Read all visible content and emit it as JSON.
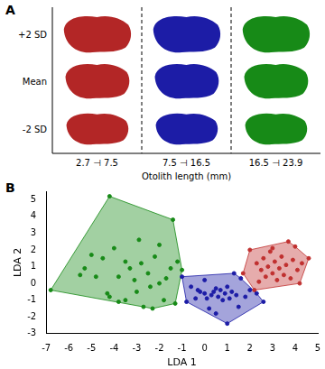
{
  "panel_a": {
    "label": "A",
    "rows": [
      "+2 SD",
      "Mean",
      "-2 SD"
    ],
    "columns": [
      {
        "label": "2.7 ⊣ 7.5",
        "color": "#b32626"
      },
      {
        "label": "7.5 ⊣ 16.5",
        "color": "#1c1ca6"
      },
      {
        "label": "16.5 ⊣ 23.9",
        "color": "#178a17"
      }
    ],
    "x_title": "Otolith length (mm)"
  },
  "panel_b_label": "B",
  "chart_data": {
    "type": "scatter",
    "x_label": "LDA 1",
    "y_label": "LDA 2",
    "xlim": [
      -7,
      5
    ],
    "ylim": [
      -3,
      5.5
    ],
    "xticks": [
      -7,
      -6,
      -5,
      -4,
      -3,
      -2,
      -1,
      0,
      1,
      2,
      3,
      4,
      5
    ],
    "yticks": [
      -3,
      -2,
      -1,
      0,
      1,
      2,
      3,
      4,
      5
    ],
    "grid": false,
    "series": [
      {
        "color": "#178a17",
        "points": [
          [
            -6.8,
            -0.4
          ],
          [
            -4.2,
            5.2
          ],
          [
            -5.5,
            0.5
          ],
          [
            -5.3,
            0.9
          ],
          [
            -4.8,
            0.4
          ],
          [
            -4.5,
            1.5
          ],
          [
            -4.3,
            -0.6
          ],
          [
            -4.0,
            2.1
          ],
          [
            -4.2,
            -0.8
          ],
          [
            -3.8,
            0.4
          ],
          [
            -3.5,
            1.3
          ],
          [
            -3.5,
            -1.0
          ],
          [
            -3.3,
            0.9
          ],
          [
            -3.1,
            0.2
          ],
          [
            -3.0,
            -0.5
          ],
          [
            -2.9,
            2.6
          ],
          [
            -2.8,
            1.2
          ],
          [
            -2.7,
            -1.4
          ],
          [
            -2.5,
            0.6
          ],
          [
            -2.4,
            -0.2
          ],
          [
            -2.2,
            1.6
          ],
          [
            -2.0,
            2.3
          ],
          [
            -2.0,
            0.0
          ],
          [
            -1.8,
            -1.0
          ],
          [
            -1.5,
            0.9
          ],
          [
            -1.4,
            3.8
          ],
          [
            -1.3,
            -1.2
          ],
          [
            -1.2,
            1.3
          ],
          [
            -1.0,
            0.8
          ],
          [
            -2.3,
            -1.5
          ],
          [
            -3.8,
            -1.1
          ],
          [
            -5.0,
            1.7
          ],
          [
            -1.7,
            0.3
          ]
        ]
      },
      {
        "color": "#1c1ca6",
        "points": [
          [
            -1.0,
            0.4
          ],
          [
            -0.8,
            -1.1
          ],
          [
            -0.6,
            -0.2
          ],
          [
            -0.3,
            -0.4
          ],
          [
            -0.2,
            -0.5
          ],
          [
            0.0,
            -0.6
          ],
          [
            0.1,
            -0.9
          ],
          [
            0.2,
            -1.5
          ],
          [
            0.3,
            -0.7
          ],
          [
            0.4,
            -0.5
          ],
          [
            0.5,
            -0.3
          ],
          [
            0.6,
            -0.8
          ],
          [
            0.7,
            -0.4
          ],
          [
            0.8,
            -1.0
          ],
          [
            0.9,
            -0.6
          ],
          [
            1.0,
            -2.4
          ],
          [
            1.0,
            -0.2
          ],
          [
            1.1,
            -0.9
          ],
          [
            1.2,
            -0.5
          ],
          [
            1.3,
            0.6
          ],
          [
            1.4,
            -0.7
          ],
          [
            1.5,
            -1.4
          ],
          [
            1.6,
            0.3
          ],
          [
            1.8,
            -0.8
          ],
          [
            2.0,
            -0.4
          ],
          [
            2.3,
            -0.6
          ],
          [
            2.6,
            -1.1
          ],
          [
            0.0,
            0.2
          ],
          [
            0.5,
            -1.8
          ],
          [
            -0.4,
            -0.9
          ]
        ]
      },
      {
        "color": "#c0302f",
        "points": [
          [
            1.7,
            0.6
          ],
          [
            2.0,
            2.0
          ],
          [
            2.2,
            -0.4
          ],
          [
            2.3,
            1.2
          ],
          [
            2.5,
            0.8
          ],
          [
            2.6,
            1.5
          ],
          [
            2.7,
            0.4
          ],
          [
            2.8,
            1.0
          ],
          [
            2.9,
            1.9
          ],
          [
            3.0,
            0.6
          ],
          [
            3.1,
            1.3
          ],
          [
            3.2,
            0.2
          ],
          [
            3.3,
            0.9
          ],
          [
            3.4,
            1.6
          ],
          [
            3.5,
            0.5
          ],
          [
            3.6,
            1.1
          ],
          [
            3.7,
            2.5
          ],
          [
            3.8,
            0.3
          ],
          [
            3.9,
            1.4
          ],
          [
            4.0,
            2.2
          ],
          [
            4.1,
            0.8
          ],
          [
            4.2,
            0.0
          ],
          [
            4.3,
            1.2
          ],
          [
            4.6,
            1.5
          ],
          [
            3.0,
            2.1
          ],
          [
            2.4,
            0.1
          ]
        ]
      }
    ]
  }
}
